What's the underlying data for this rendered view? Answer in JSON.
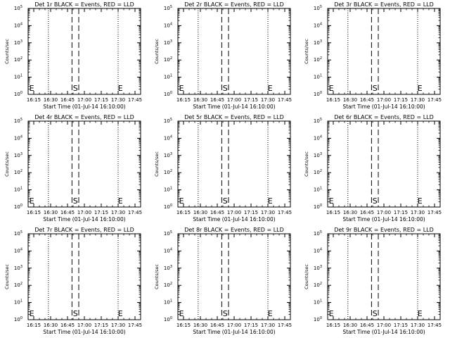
{
  "chart_data": [
    {
      "type": "line",
      "title": "Det 1r BLACK = Events, RED = LLD",
      "xlabel": "Start Time (01-Jul-14 16:10:00)",
      "ylabel": "Counts/sec"
    },
    {
      "type": "line",
      "title": "Det 2r BLACK = Events, RED = LLD",
      "xlabel": "Start Time (01-Jul-14 16:10:00)",
      "ylabel": "Counts/sec"
    },
    {
      "type": "line",
      "title": "Det 3r BLACK = Events, RED = LLD",
      "xlabel": "Start Time (01-Jul-14 16:10:00)",
      "ylabel": "Counts/sec"
    },
    {
      "type": "line",
      "title": "Det 4r BLACK = Events, RED = LLD",
      "xlabel": "Start Time (01-Jul-14 16:10:00)",
      "ylabel": "Counts/sec"
    },
    {
      "type": "line",
      "title": "Det 5r BLACK = Events, RED = LLD",
      "xlabel": "Start Time (01-Jul-14 16:10:00)",
      "ylabel": "Counts/sec"
    },
    {
      "type": "line",
      "title": "Det 6r BLACK = Events, RED = LLD",
      "xlabel": "Start Time (01-Jul-14 16:10:00)",
      "ylabel": "Counts/sec"
    },
    {
      "type": "line",
      "title": "Det 7r BLACK = Events, RED = LLD",
      "xlabel": "Start Time (01-Jul-14 16:10:00)",
      "ylabel": "Counts/sec"
    },
    {
      "type": "line",
      "title": "Det 8r BLACK = Events, RED = LLD",
      "xlabel": "Start Time (01-Jul-14 16:10:00)",
      "ylabel": "Counts/sec"
    },
    {
      "type": "line",
      "title": "Det 9r BLACK = Events, RED = LLD",
      "xlabel": "Start Time (01-Jul-14 16:10:00)",
      "ylabel": "Counts/sec"
    }
  ],
  "shared_axes": {
    "x_ticks": [
      "16:15",
      "16:30",
      "16:45",
      "17:00",
      "17:15",
      "17:30",
      "17:45"
    ],
    "x_tick_minutes": [
      5,
      20,
      35,
      50,
      65,
      80,
      95
    ],
    "xlim_minutes": [
      0,
      100
    ],
    "y_scale": "log",
    "y_ticks": [
      {
        "base": "10",
        "exp": "0",
        "value": 1
      },
      {
        "base": "10",
        "exp": "1",
        "value": 10
      },
      {
        "base": "10",
        "exp": "2",
        "value": 100
      },
      {
        "base": "10",
        "exp": "3",
        "value": 1000
      },
      {
        "base": "10",
        "exp": "4",
        "value": 10000
      },
      {
        "base": "10",
        "exp": "5",
        "value": 100000
      }
    ],
    "ylim": [
      1,
      100000
    ]
  },
  "markers": {
    "start_label": "E",
    "s_label": "S",
    "end_label": "E",
    "start_minute": 1,
    "s_minute": 42,
    "end_minute": 82,
    "dotted_lines_minutes": [
      18,
      80
    ],
    "dashed_lines_minutes": [
      39,
      45
    ]
  }
}
